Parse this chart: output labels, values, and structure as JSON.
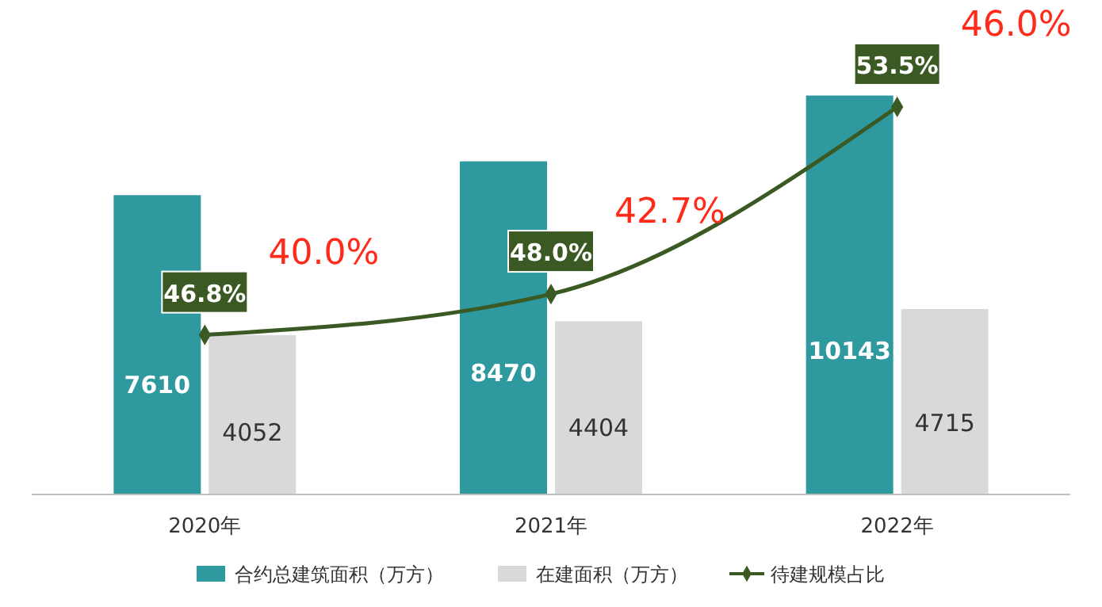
{
  "chart_data": {
    "type": "bar",
    "categories": [
      "2020年",
      "2021年",
      "2022年"
    ],
    "series": [
      {
        "name": "合约总建筑面积（万方）",
        "color": "#2e9aa0",
        "values": [
          7610,
          8470,
          10143
        ]
      },
      {
        "name": "在建面积（万方）",
        "color": "#d9d9d9",
        "values": [
          4052,
          4404,
          4715
        ]
      },
      {
        "name": "待建规模占比",
        "type": "line",
        "axis": "y2",
        "color": "#3b5a23",
        "values": [
          46.8,
          48.0,
          53.5
        ],
        "value_labels": [
          "46.8%",
          "48.0%",
          "53.5%"
        ]
      }
    ],
    "tick_labels": "x",
    "data_labels": true,
    "legend": "bottom",
    "marker": "diamond",
    "line_style": "solid",
    "annotations": [
      "40.0%",
      "42.7%",
      "46.0%"
    ]
  }
}
